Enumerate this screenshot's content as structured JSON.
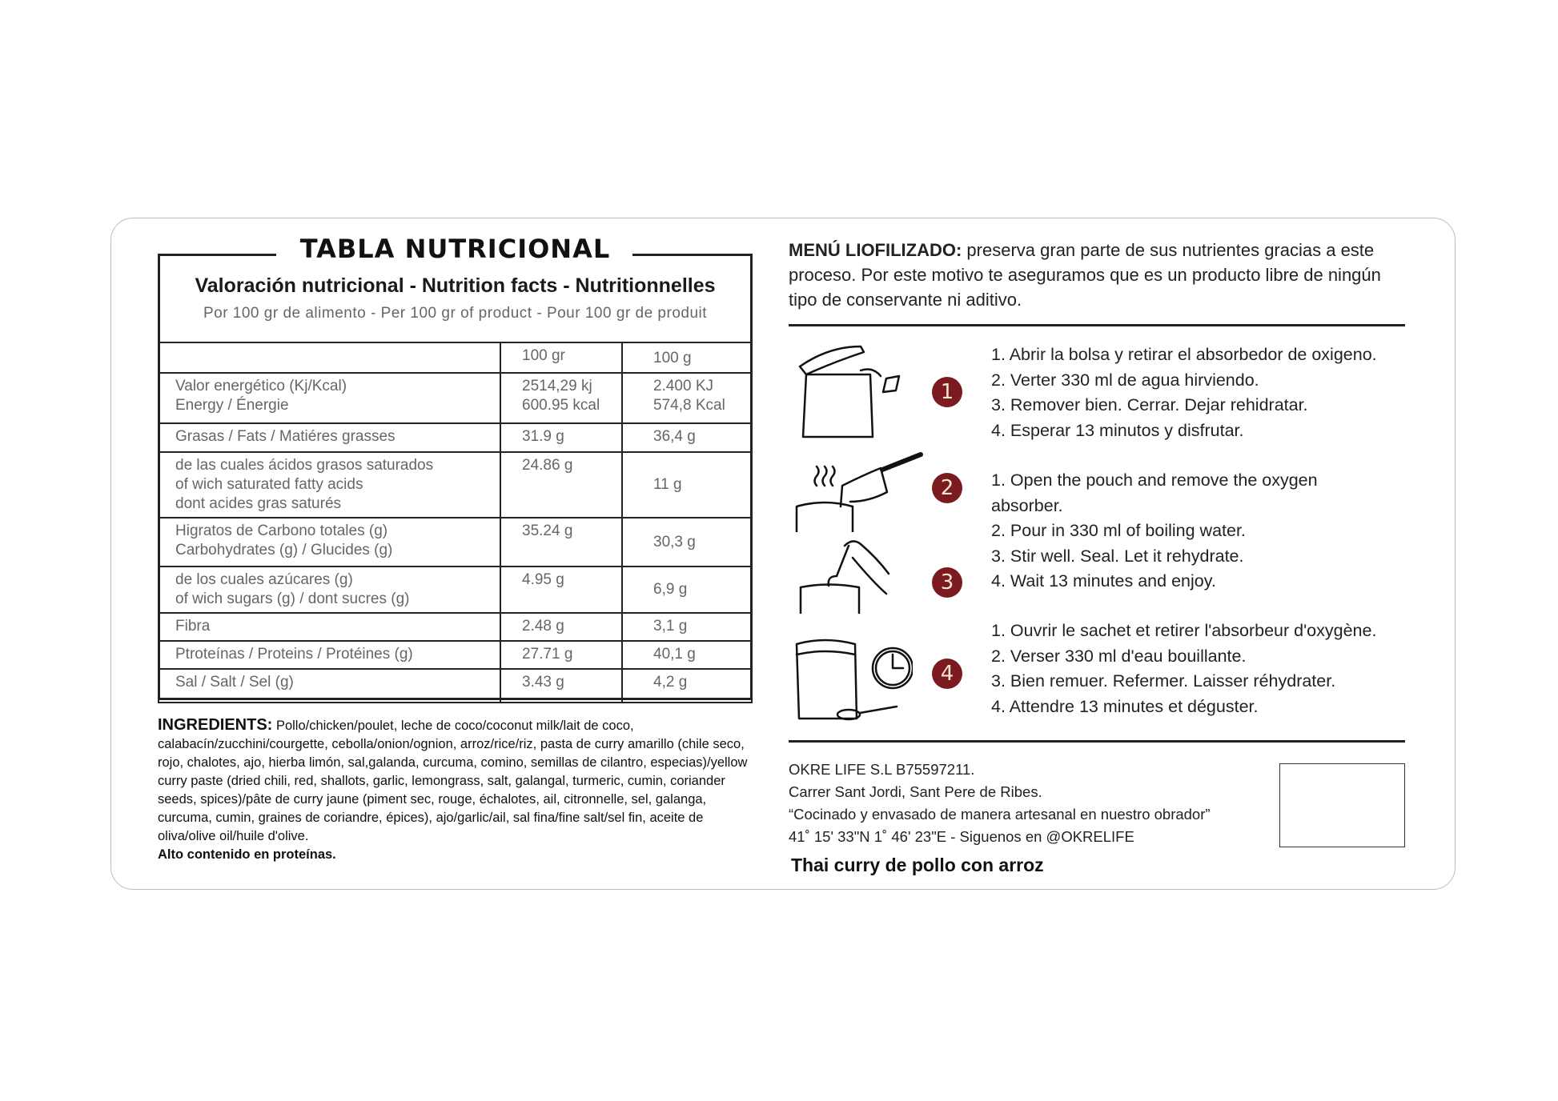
{
  "nutrition": {
    "title": "TABLA NUTRICIONAL",
    "subtitle": "Valoración nutricional - Nutrition facts - Nutritionnelles",
    "per": "Por 100 gr de alimento - Per 100 gr of product - Pour 100 gr de produit",
    "headers": [
      "",
      "100 gr",
      "100 g"
    ],
    "rows": [
      {
        "label": [
          "Valor energético (Kj/Kcal)",
          "Energy / Énergie"
        ],
        "v1": [
          "2514,29 kj",
          "600.95 kcal"
        ],
        "v2": [
          "2.400 KJ",
          "574,8 Kcal"
        ]
      },
      {
        "label": [
          "Grasas / Fats / Matiéres grasses"
        ],
        "v1": [
          "31.9 g"
        ],
        "v2": [
          "36,4 g"
        ]
      },
      {
        "label": [
          "de las cuales ácidos grasos saturados",
          "of wich saturated fatty acids",
          "dont acides gras saturés"
        ],
        "v1": [
          "24.86 g"
        ],
        "v2": [
          "11 g"
        ]
      },
      {
        "label": [
          "Higratos de Carbono totales (g)",
          "Carbohydrates (g) / Glucides (g)"
        ],
        "v1": [
          "35.24 g"
        ],
        "v2": [
          "30,3 g"
        ]
      },
      {
        "label": [
          "de los cuales azúcares (g)",
          "of wich sugars (g) / dont sucres (g)"
        ],
        "v1": [
          "4.95 g"
        ],
        "v2": [
          "6,9 g"
        ]
      },
      {
        "label": [
          "Fibra"
        ],
        "v1": [
          "2.48 g"
        ],
        "v2": [
          "3,1 g"
        ]
      },
      {
        "label": [
          "Ptroteínas / Proteins / Protéines (g)"
        ],
        "v1": [
          "27.71 g"
        ],
        "v2": [
          "40,1 g"
        ]
      },
      {
        "label": [
          "Sal / Salt / Sel (g)"
        ],
        "v1": [
          "3.43 g"
        ],
        "v2": [
          "4,2 g"
        ]
      }
    ]
  },
  "ingredients": {
    "heading": "INGREDIENTS:",
    "text": "Pollo/chicken/poulet, leche de coco/coconut milk/lait de coco, calabacín/zucchini/courgette, cebolla/onion/ognion, arroz/rice/riz, pasta de curry amarillo (chile seco, rojo, chalotes, ajo, hierba limón, sal,galanda, curcuma, comino, semillas de cilantro, especias)/yellow curry paste (dried chili, red, shallots, garlic, lemongrass, salt, galangal, turmeric, cumin, coriander seeds, spices)/pâte de curry jaune (piment sec, rouge, échalotes, ail, citronnelle, sel, galanga, curcuma, cumin, graines de coriandre, épices), ajo/garlic/ail, sal fina/fine salt/sel fin, aceite de oliva/olive oil/huile d'olive.",
    "claim": "Alto contenido en proteínas."
  },
  "intro": {
    "heading": "MENÚ LIOFILIZADO:",
    "text": " preserva gran parte de sus nutrientes gracias a este proceso. Por este motivo te aseguramos que es un producto libre de ningún tipo de conservante ni aditivo."
  },
  "steps": {
    "numbers": [
      "1",
      "2",
      "3",
      "4"
    ],
    "accent_color": "#7b1a1f",
    "es": [
      "1. Abrir la bolsa y retirar el absorbedor de oxigeno.",
      "2. Verter 330 ml de agua hirviendo.",
      "3. Remover bien. Cerrar. Dejar rehidratar.",
      "4. Esperar 13 minutos y disfrutar."
    ],
    "en": [
      "1. Open the pouch and remove the oxygen absorber.",
      "2. Pour in 330 ml of boiling water.",
      "3. Stir well. Seal. Let it rehydrate.",
      "4. Wait 13 minutes and enjoy."
    ],
    "fr": [
      "1. Ouvrir le sachet et retirer l'absorbeur d'oxygène.",
      "2. Verser 330 ml d'eau bouillante.",
      "3. Bien remuer. Refermer. Laisser réhydrater.",
      "4. Attendre 13 minutes et déguster."
    ],
    "icons": [
      "open-pouch-icon",
      "pour-water-icon",
      "stir-spoon-icon",
      "wait-clock-icon"
    ]
  },
  "footer": {
    "lines": [
      "OKRE LIFE S.L B75597211.",
      "Carrer Sant Jordi, Sant Pere de Ribes.",
      "“Cocinado y envasado de manera artesanal en nuestro obrador”",
      "41˚ 15' 33\"N  1˚ 46' 23\"E - Siguenos en @OKRELIFE"
    ],
    "product": "Thai curry de pollo con arroz"
  }
}
